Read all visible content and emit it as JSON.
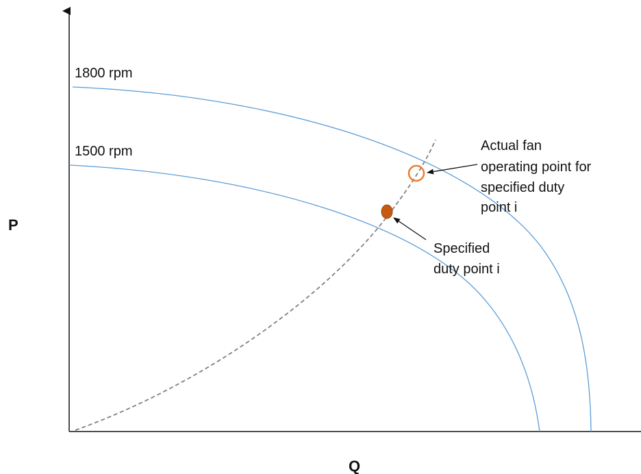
{
  "axes": {
    "y_label": "P",
    "x_label": "Q"
  },
  "curves": {
    "upper_label": "1800 rpm",
    "lower_label": "1500 rpm",
    "curve_color": "#5b9bd5",
    "system_curve_color": "#808080"
  },
  "points": {
    "actual_color": "#ed7d31",
    "specified_color": "#c55a11"
  },
  "annotations": {
    "actual_lines": [
      "Actual fan",
      "operating point for",
      "specified duty",
      "point i"
    ],
    "specified_lines": [
      "Specified",
      "duty point i"
    ]
  }
}
